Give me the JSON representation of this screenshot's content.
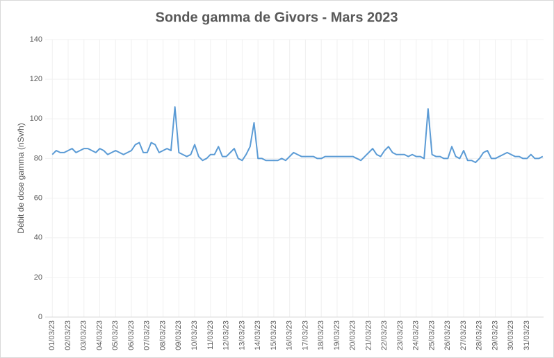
{
  "chart_data": {
    "type": "line",
    "title": "Sonde gamma de Givors - Mars 2023",
    "y_label": "Débit de dose gamma (nSv/h)",
    "x": [
      1,
      1.25,
      1.5,
      1.75,
      2,
      2.25,
      2.5,
      2.75,
      3,
      3.25,
      3.5,
      3.75,
      4,
      4.25,
      4.5,
      4.75,
      5,
      5.25,
      5.5,
      5.75,
      6,
      6.25,
      6.5,
      6.75,
      7,
      7.25,
      7.5,
      7.75,
      8,
      8.25,
      8.5,
      8.75,
      9,
      9.25,
      9.5,
      9.75,
      10,
      10.25,
      10.5,
      10.75,
      11,
      11.25,
      11.5,
      11.75,
      12,
      12.25,
      12.5,
      12.75,
      13,
      13.25,
      13.5,
      13.75,
      14,
      14.25,
      14.5,
      14.75,
      15,
      15.25,
      15.5,
      15.75,
      16,
      16.25,
      16.5,
      16.75,
      17,
      17.25,
      17.5,
      17.75,
      18,
      18.25,
      18.5,
      18.75,
      19,
      19.25,
      19.5,
      19.75,
      20,
      20.25,
      20.5,
      20.75,
      21,
      21.25,
      21.5,
      21.75,
      22,
      22.25,
      22.5,
      22.75,
      23,
      23.25,
      23.5,
      23.75,
      24,
      24.25,
      24.5,
      24.75,
      25,
      25.25,
      25.5,
      25.75,
      26,
      26.25,
      26.5,
      26.75,
      27,
      27.25,
      27.5,
      27.75,
      28,
      28.25,
      28.5,
      28.75,
      29,
      29.25,
      29.5,
      29.75,
      30,
      30.25,
      30.5,
      30.75,
      31,
      31.25,
      31.5,
      31.75,
      32
    ],
    "series": [
      {
        "name": "Débit de dose",
        "color": "#5b9bd5",
        "values": [
          82,
          84,
          83,
          83,
          84,
          85,
          83,
          84,
          85,
          85,
          84,
          83,
          85,
          84,
          82,
          83,
          84,
          83,
          82,
          83,
          84,
          87,
          88,
          83,
          83,
          88,
          87,
          83,
          84,
          85,
          84,
          106,
          83,
          82,
          81,
          82,
          87,
          81,
          79,
          80,
          82,
          82,
          86,
          81,
          81,
          83,
          85,
          80,
          79,
          82,
          86,
          98,
          80,
          80,
          79,
          79,
          79,
          79,
          80,
          79,
          81,
          83,
          82,
          81,
          81,
          81,
          81,
          80,
          80,
          81,
          81,
          81,
          81,
          81,
          81,
          81,
          81,
          80,
          79,
          81,
          83,
          85,
          82,
          81,
          84,
          86,
          83,
          82,
          82,
          82,
          81,
          82,
          81,
          81,
          80,
          105,
          82,
          81,
          81,
          80,
          80,
          86,
          81,
          80,
          84,
          79,
          79,
          78,
          80,
          83,
          84,
          80,
          80,
          81,
          82,
          83,
          82,
          81,
          81,
          80,
          80,
          82,
          80,
          80,
          81
        ]
      }
    ],
    "xlim": [
      0.55,
      32.05
    ],
    "xticks": [
      {
        "value": 1,
        "label": "01/03/23"
      },
      {
        "value": 2,
        "label": "02/03/23"
      },
      {
        "value": 3,
        "label": "03/03/23"
      },
      {
        "value": 4,
        "label": "04/03/23"
      },
      {
        "value": 5,
        "label": "05/03/23"
      },
      {
        "value": 6,
        "label": "06/03/23"
      },
      {
        "value": 7,
        "label": "07/03/23"
      },
      {
        "value": 8,
        "label": "08/03/23"
      },
      {
        "value": 9,
        "label": "09/03/23"
      },
      {
        "value": 10,
        "label": "10/03/23"
      },
      {
        "value": 11,
        "label": "11/03/23"
      },
      {
        "value": 12,
        "label": "12/03/23"
      },
      {
        "value": 13,
        "label": "13/03/23"
      },
      {
        "value": 14,
        "label": "14/03/23"
      },
      {
        "value": 15,
        "label": "15/03/23"
      },
      {
        "value": 16,
        "label": "16/03/23"
      },
      {
        "value": 17,
        "label": "17/03/23"
      },
      {
        "value": 18,
        "label": "18/03/23"
      },
      {
        "value": 19,
        "label": "19/03/23"
      },
      {
        "value": 20,
        "label": "20/03/23"
      },
      {
        "value": 21,
        "label": "21/03/23"
      },
      {
        "value": 22,
        "label": "22/03/23"
      },
      {
        "value": 23,
        "label": "23/03/23"
      },
      {
        "value": 24,
        "label": "24/03/23"
      },
      {
        "value": 25,
        "label": "25/03/23"
      },
      {
        "value": 26,
        "label": "26/03/23"
      },
      {
        "value": 27,
        "label": "27/03/23"
      },
      {
        "value": 28,
        "label": "28/03/23"
      },
      {
        "value": 29,
        "label": "29/03/23"
      },
      {
        "value": 30,
        "label": "30/03/23"
      },
      {
        "value": 31,
        "label": "31/03/23"
      }
    ],
    "ylim": [
      0,
      140
    ],
    "yticks": [
      0,
      20,
      40,
      60,
      80,
      100,
      120,
      140
    ],
    "grid": true
  }
}
